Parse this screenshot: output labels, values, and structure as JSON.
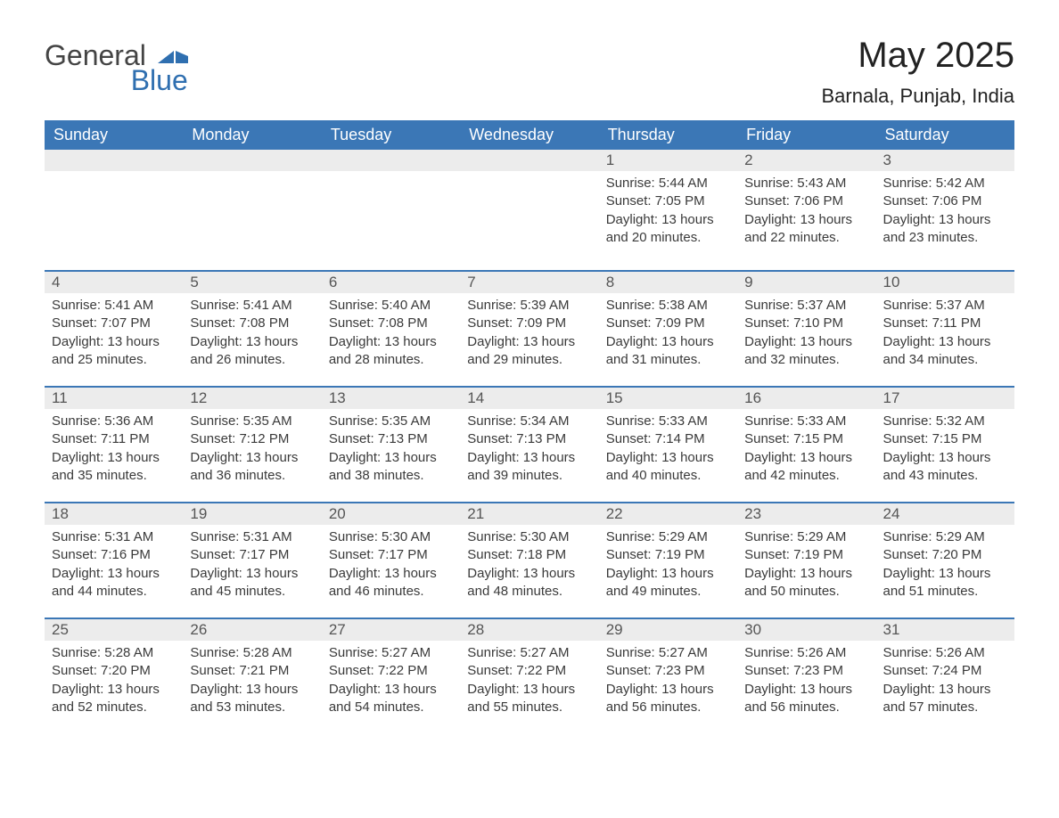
{
  "brand": {
    "name_part1": "General",
    "name_part2": "Blue",
    "text_color": "#444444",
    "accent_color": "#2f6fb0"
  },
  "title": "May 2025",
  "location": "Barnala, Punjab, India",
  "colors": {
    "header_bg": "#3b77b6",
    "header_text": "#ffffff",
    "daynum_bg": "#ececec",
    "daynum_border": "#3b77b6",
    "daynum_text": "#555555",
    "body_text": "#3a3a3a",
    "page_bg": "#ffffff"
  },
  "typography": {
    "title_fontsize": 40,
    "location_fontsize": 22,
    "header_fontsize": 18,
    "daynum_fontsize": 17,
    "body_fontsize": 15
  },
  "weekdays": [
    "Sunday",
    "Monday",
    "Tuesday",
    "Wednesday",
    "Thursday",
    "Friday",
    "Saturday"
  ],
  "weeks": [
    [
      null,
      null,
      null,
      null,
      {
        "day": "1",
        "sunrise": "5:44 AM",
        "sunset": "7:05 PM",
        "daylight": "13 hours and 20 minutes."
      },
      {
        "day": "2",
        "sunrise": "5:43 AM",
        "sunset": "7:06 PM",
        "daylight": "13 hours and 22 minutes."
      },
      {
        "day": "3",
        "sunrise": "5:42 AM",
        "sunset": "7:06 PM",
        "daylight": "13 hours and 23 minutes."
      }
    ],
    [
      {
        "day": "4",
        "sunrise": "5:41 AM",
        "sunset": "7:07 PM",
        "daylight": "13 hours and 25 minutes."
      },
      {
        "day": "5",
        "sunrise": "5:41 AM",
        "sunset": "7:08 PM",
        "daylight": "13 hours and 26 minutes."
      },
      {
        "day": "6",
        "sunrise": "5:40 AM",
        "sunset": "7:08 PM",
        "daylight": "13 hours and 28 minutes."
      },
      {
        "day": "7",
        "sunrise": "5:39 AM",
        "sunset": "7:09 PM",
        "daylight": "13 hours and 29 minutes."
      },
      {
        "day": "8",
        "sunrise": "5:38 AM",
        "sunset": "7:09 PM",
        "daylight": "13 hours and 31 minutes."
      },
      {
        "day": "9",
        "sunrise": "5:37 AM",
        "sunset": "7:10 PM",
        "daylight": "13 hours and 32 minutes."
      },
      {
        "day": "10",
        "sunrise": "5:37 AM",
        "sunset": "7:11 PM",
        "daylight": "13 hours and 34 minutes."
      }
    ],
    [
      {
        "day": "11",
        "sunrise": "5:36 AM",
        "sunset": "7:11 PM",
        "daylight": "13 hours and 35 minutes."
      },
      {
        "day": "12",
        "sunrise": "5:35 AM",
        "sunset": "7:12 PM",
        "daylight": "13 hours and 36 minutes."
      },
      {
        "day": "13",
        "sunrise": "5:35 AM",
        "sunset": "7:13 PM",
        "daylight": "13 hours and 38 minutes."
      },
      {
        "day": "14",
        "sunrise": "5:34 AM",
        "sunset": "7:13 PM",
        "daylight": "13 hours and 39 minutes."
      },
      {
        "day": "15",
        "sunrise": "5:33 AM",
        "sunset": "7:14 PM",
        "daylight": "13 hours and 40 minutes."
      },
      {
        "day": "16",
        "sunrise": "5:33 AM",
        "sunset": "7:15 PM",
        "daylight": "13 hours and 42 minutes."
      },
      {
        "day": "17",
        "sunrise": "5:32 AM",
        "sunset": "7:15 PM",
        "daylight": "13 hours and 43 minutes."
      }
    ],
    [
      {
        "day": "18",
        "sunrise": "5:31 AM",
        "sunset": "7:16 PM",
        "daylight": "13 hours and 44 minutes."
      },
      {
        "day": "19",
        "sunrise": "5:31 AM",
        "sunset": "7:17 PM",
        "daylight": "13 hours and 45 minutes."
      },
      {
        "day": "20",
        "sunrise": "5:30 AM",
        "sunset": "7:17 PM",
        "daylight": "13 hours and 46 minutes."
      },
      {
        "day": "21",
        "sunrise": "5:30 AM",
        "sunset": "7:18 PM",
        "daylight": "13 hours and 48 minutes."
      },
      {
        "day": "22",
        "sunrise": "5:29 AM",
        "sunset": "7:19 PM",
        "daylight": "13 hours and 49 minutes."
      },
      {
        "day": "23",
        "sunrise": "5:29 AM",
        "sunset": "7:19 PM",
        "daylight": "13 hours and 50 minutes."
      },
      {
        "day": "24",
        "sunrise": "5:29 AM",
        "sunset": "7:20 PM",
        "daylight": "13 hours and 51 minutes."
      }
    ],
    [
      {
        "day": "25",
        "sunrise": "5:28 AM",
        "sunset": "7:20 PM",
        "daylight": "13 hours and 52 minutes."
      },
      {
        "day": "26",
        "sunrise": "5:28 AM",
        "sunset": "7:21 PM",
        "daylight": "13 hours and 53 minutes."
      },
      {
        "day": "27",
        "sunrise": "5:27 AM",
        "sunset": "7:22 PM",
        "daylight": "13 hours and 54 minutes."
      },
      {
        "day": "28",
        "sunrise": "5:27 AM",
        "sunset": "7:22 PM",
        "daylight": "13 hours and 55 minutes."
      },
      {
        "day": "29",
        "sunrise": "5:27 AM",
        "sunset": "7:23 PM",
        "daylight": "13 hours and 56 minutes."
      },
      {
        "day": "30",
        "sunrise": "5:26 AM",
        "sunset": "7:23 PM",
        "daylight": "13 hours and 56 minutes."
      },
      {
        "day": "31",
        "sunrise": "5:26 AM",
        "sunset": "7:24 PM",
        "daylight": "13 hours and 57 minutes."
      }
    ]
  ],
  "labels": {
    "sunrise_prefix": "Sunrise: ",
    "sunset_prefix": "Sunset: ",
    "daylight_prefix": "Daylight: "
  }
}
